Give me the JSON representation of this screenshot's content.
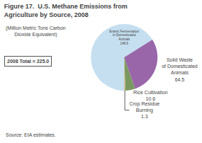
{
  "chart_data": {
    "type": "pie",
    "title": "Figure 17.  U.S. Methane Emissions from\nAgriculture by Source, 2008",
    "subtitle": "(Million Metric Tons Carbon\nDioxide Equivalent)",
    "annotations": [
      "2008 Total = 225.0",
      "Source: EIA estimates."
    ],
    "categories": [
      "Enteric Fermentation\nin Domesticated\nAnimals",
      "Solid Waste\nof Domesticated\nAnimals",
      "Rice Cultivation",
      "Crop Residue\nBurning"
    ],
    "values": [
      148.6,
      64.5,
      10.6,
      1.3
    ],
    "colors": [
      "#c5dff0",
      "#9966aa",
      "#7a9960",
      "#c8b080"
    ],
    "data_labels": true
  }
}
